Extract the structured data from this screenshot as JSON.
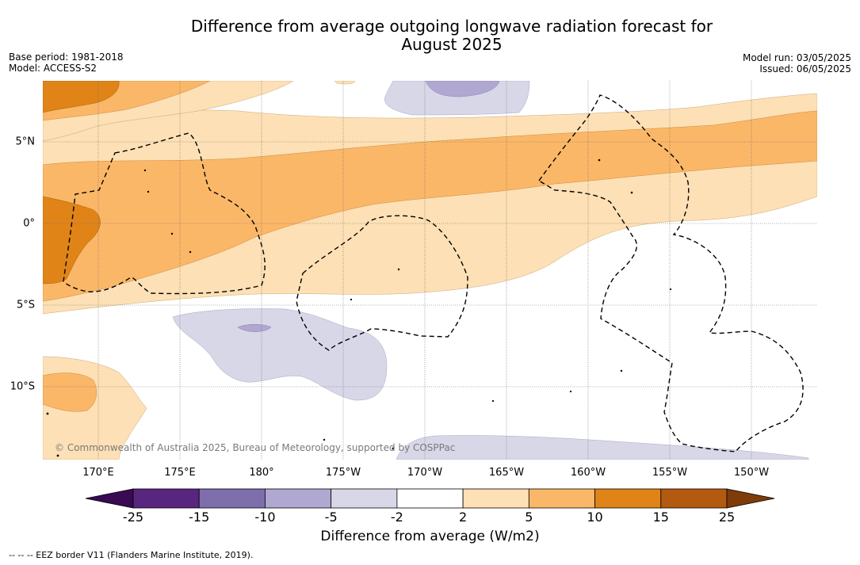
{
  "title": {
    "line1": "Difference from average outgoing longwave radiation forecast for",
    "line2": "August 2025"
  },
  "meta": {
    "base_period": "Base period: 1981-2018",
    "model": "Model: ACCESS-S2",
    "model_run": "Model run: 03/05/2025",
    "issued": "Issued: 06/05/2025"
  },
  "map": {
    "longitude_labels": [
      "170°E",
      "175°E",
      "180°",
      "175°W",
      "170°W",
      "165°W",
      "160°W",
      "155°W",
      "150°W"
    ],
    "latitude_labels": [
      "5°N",
      "0°",
      "5°S",
      "10°S"
    ],
    "copyright": "© Commonwealth of Australia 2025, Bureau of Meteorology, supported by COSPPac",
    "colors": {
      "light_orange": "#fde0b5",
      "mid_orange": "#fbb768",
      "dark_orange": "#e08418",
      "light_purple": "#d8d7e8",
      "mid_purple": "#b0a8d0",
      "eez_line": "#000000"
    }
  },
  "colorbar": {
    "tick_labels": [
      "-25",
      "-15",
      "-10",
      "-5",
      "-2",
      "2",
      "5",
      "10",
      "15",
      "25"
    ],
    "bin_colors": [
      "#58257f",
      "#7e6eac",
      "#b0a8d0",
      "#d8d7e8",
      "#ffffff",
      "#fde0b5",
      "#fbb768",
      "#e08418",
      "#b35a10"
    ],
    "under_color": "#3a0a55",
    "over_color": "#7f3b08",
    "title": "Difference from average (W/m2)"
  },
  "legend_note": "--  --  -- EEZ border V11 (Flanders Marine Institute, 2019)."
}
